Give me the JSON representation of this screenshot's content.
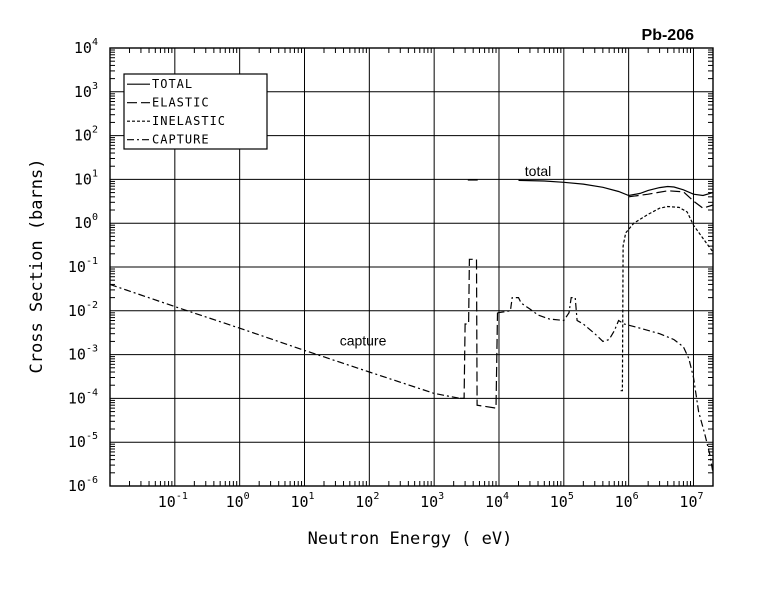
{
  "chart_data": {
    "type": "line",
    "title": "Pb-206",
    "xlabel": "Neutron Energy ( eV)",
    "ylabel": "Cross Section (barns)",
    "x_scale": "log",
    "y_scale": "log",
    "xlim": [
      0.01,
      20000000.0
    ],
    "ylim": [
      1e-06,
      10000.0
    ],
    "grid": true,
    "legend_position": "top-left",
    "x_ticks": [
      {
        "base": "10",
        "exp": "-1",
        "value": 0.1
      },
      {
        "base": "10",
        "exp": "0",
        "value": 1
      },
      {
        "base": "10",
        "exp": "1",
        "value": 10
      },
      {
        "base": "10",
        "exp": "2",
        "value": 100
      },
      {
        "base": "10",
        "exp": "3",
        "value": 1000
      },
      {
        "base": "10",
        "exp": "4",
        "value": 10000
      },
      {
        "base": "10",
        "exp": "5",
        "value": 100000
      },
      {
        "base": "10",
        "exp": "6",
        "value": 1000000
      },
      {
        "base": "10",
        "exp": "7",
        "value": 10000000
      }
    ],
    "y_ticks": [
      {
        "base": "10",
        "exp": "-6",
        "value": 1e-06
      },
      {
        "base": "10",
        "exp": "-5",
        "value": 1e-05
      },
      {
        "base": "10",
        "exp": "-4",
        "value": 0.0001
      },
      {
        "base": "10",
        "exp": "-3",
        "value": 0.001
      },
      {
        "base": "10",
        "exp": "-2",
        "value": 0.01
      },
      {
        "base": "10",
        "exp": "-1",
        "value": 0.1
      },
      {
        "base": "10",
        "exp": "0",
        "value": 1
      },
      {
        "base": "10",
        "exp": "1",
        "value": 10
      },
      {
        "base": "10",
        "exp": "2",
        "value": 100
      },
      {
        "base": "10",
        "exp": "3",
        "value": 1000
      },
      {
        "base": "10",
        "exp": "4",
        "value": 10000
      }
    ],
    "legend": [
      {
        "label": "TOTAL",
        "style": "solid"
      },
      {
        "label": "ELASTIC",
        "style": "long-dash"
      },
      {
        "label": "INELASTIC",
        "style": "short-dash"
      },
      {
        "label": "CAPTURE",
        "style": "dash-dot"
      }
    ],
    "annotations": [
      {
        "text": "total",
        "x": 40000,
        "y": 12
      },
      {
        "text": "capture",
        "x": 80,
        "y": 0.0016
      }
    ],
    "series": [
      {
        "name": "TOTAL",
        "style": "solid",
        "segments": [
          [
            [
              3300,
              9.7
            ],
            [
              4700,
              9.7
            ]
          ],
          [
            [
              20000,
              9.5
            ],
            [
              50000,
              9.2
            ],
            [
              100000,
              8.6
            ],
            [
              200000,
              7.8
            ],
            [
              400000,
              6.6
            ],
            [
              700000,
              5.3
            ],
            [
              1000000,
              4.3
            ],
            [
              1500000,
              4.8
            ],
            [
              2000000,
              5.6
            ],
            [
              3000000,
              6.5
            ],
            [
              4000000,
              6.9
            ],
            [
              5000000,
              6.7
            ],
            [
              7000000,
              5.8
            ],
            [
              10000000,
              4.6
            ],
            [
              14000000,
              4.3
            ],
            [
              20000000,
              5.0
            ]
          ]
        ]
      },
      {
        "name": "ELASTIC",
        "style": "long-dash",
        "segments": [
          [
            [
              2500,
              0.0001
            ],
            [
              2900,
              0.0001
            ],
            [
              3000,
              0.005
            ],
            [
              3400,
              0.005
            ],
            [
              3500,
              0.15
            ],
            [
              4500,
              0.15
            ],
            [
              4600,
              7e-05
            ],
            [
              9000,
              6e-05
            ],
            [
              9500,
              0.009
            ]
          ],
          [
            [
              1000000,
              4.0
            ],
            [
              2000000,
              4.6
            ],
            [
              4000000,
              5.5
            ],
            [
              7000000,
              5.2
            ],
            [
              10000000,
              3.2
            ],
            [
              14000000,
              2.2
            ],
            [
              20000000,
              2.6
            ]
          ]
        ]
      },
      {
        "name": "INELASTIC",
        "style": "short-dash",
        "segments": [
          [
            [
              750000,
              0.00015
            ],
            [
              800000,
              0.00015
            ],
            [
              820000,
              0.3
            ],
            [
              900000,
              0.6
            ],
            [
              1200000,
              1.0
            ],
            [
              2000000,
              1.6
            ],
            [
              3000000,
              2.2
            ],
            [
              4000000,
              2.4
            ],
            [
              6000000,
              2.3
            ],
            [
              8000000,
              1.8
            ],
            [
              10000000,
              0.9
            ],
            [
              14000000,
              0.45
            ],
            [
              20000000,
              0.22
            ]
          ]
        ]
      },
      {
        "name": "CAPTURE",
        "style": "dash-dot",
        "segments": [
          [
            [
              0.01,
              0.04
            ],
            [
              0.1,
              0.0125
            ],
            [
              1,
              0.004
            ],
            [
              10,
              0.00125
            ],
            [
              100,
              0.0004
            ],
            [
              1000,
              0.00013
            ],
            [
              2500,
              0.0001
            ]
          ],
          [
            [
              9500,
              0.009
            ],
            [
              15000,
              0.01
            ],
            [
              16000,
              0.02
            ],
            [
              20000,
              0.02
            ],
            [
              22000,
              0.015
            ],
            [
              30000,
              0.011
            ],
            [
              40000,
              0.008
            ],
            [
              60000,
              0.0065
            ],
            [
              100000,
              0.006
            ],
            [
              120000,
              0.009
            ],
            [
              130000,
              0.02
            ],
            [
              150000,
              0.02
            ],
            [
              160000,
              0.006
            ],
            [
              200000,
              0.005
            ],
            [
              300000,
              0.003
            ],
            [
              400000,
              0.002
            ],
            [
              500000,
              0.0022
            ],
            [
              600000,
              0.0035
            ],
            [
              700000,
              0.006
            ],
            [
              850000,
              0.005
            ],
            [
              1500000,
              0.004
            ],
            [
              3000000,
              0.003
            ],
            [
              5000000,
              0.0022
            ],
            [
              7000000,
              0.0015
            ],
            [
              8500000,
              0.0008
            ],
            [
              10000000,
              0.0003
            ],
            [
              12000000,
              5e-05
            ],
            [
              15000000,
              1.5e-05
            ],
            [
              18000000,
              5e-06
            ],
            [
              20000000,
              2e-06
            ]
          ]
        ]
      }
    ]
  }
}
